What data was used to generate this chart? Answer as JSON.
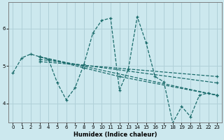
{
  "xlabel": "Humidex (Indice chaleur)",
  "xlim": [
    -0.5,
    23.5
  ],
  "ylim": [
    3.5,
    6.7
  ],
  "yticks": [
    4,
    5,
    6
  ],
  "xticks": [
    0,
    1,
    2,
    3,
    4,
    5,
    6,
    7,
    8,
    9,
    10,
    11,
    12,
    13,
    14,
    15,
    16,
    17,
    18,
    19,
    20,
    21,
    22,
    23
  ],
  "background_color": "#cce8ee",
  "grid_color": "#b0d0d8",
  "line_color": "#1a6b6b",
  "line1_x": [
    0,
    1,
    2,
    3,
    4,
    5,
    6,
    7,
    8,
    9,
    10,
    11,
    12,
    13,
    14,
    15,
    16,
    17,
    18,
    19,
    20,
    21,
    22,
    23
  ],
  "line1_y": [
    4.82,
    5.22,
    5.32,
    5.25,
    5.18,
    4.55,
    4.1,
    4.42,
    5.05,
    5.88,
    6.22,
    6.28,
    4.35,
    4.92,
    6.32,
    5.62,
    4.72,
    4.58,
    3.48,
    3.92,
    3.65,
    4.22,
    4.28,
    4.22
  ],
  "line2_x": [
    3,
    23
  ],
  "line2_y": [
    5.25,
    4.22
  ],
  "line3_x": [
    3,
    23
  ],
  "line3_y": [
    5.18,
    4.55
  ],
  "line4_x": [
    3,
    23
  ],
  "line4_y": [
    5.12,
    4.72
  ],
  "line5_x": [
    3,
    8,
    12,
    23
  ],
  "line5_y": [
    5.25,
    4.95,
    4.72,
    4.22
  ]
}
